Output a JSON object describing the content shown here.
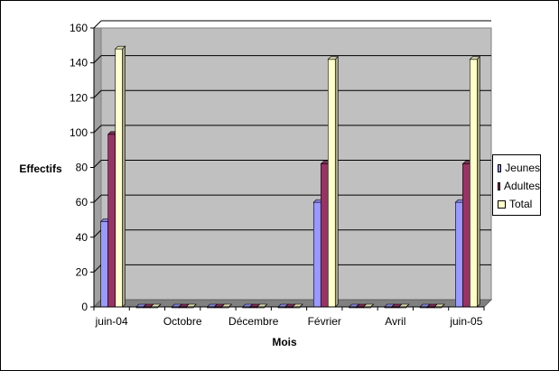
{
  "chart_data": {
    "type": "bar",
    "style": "3d-clustered-columns",
    "categories": [
      "juin-04",
      "",
      "Octobre",
      "",
      "Décembre",
      "",
      "Février",
      "",
      "Avril",
      "",
      "juin-05"
    ],
    "series": [
      {
        "name": "Jeunes",
        "color": "#9999FF",
        "values": [
          49,
          0,
          0,
          0,
          0,
          0,
          60,
          0,
          0,
          0,
          60
        ]
      },
      {
        "name": "Adultes",
        "color": "#993366",
        "values": [
          99,
          0,
          0,
          0,
          0,
          0,
          82,
          0,
          0,
          0,
          82
        ]
      },
      {
        "name": "Total",
        "color": "#FFFFCC",
        "values": [
          148,
          0,
          0,
          0,
          0,
          0,
          142,
          0,
          0,
          0,
          142
        ]
      }
    ],
    "title": "",
    "xlabel": "Mois",
    "ylabel": "Effectifs",
    "ylim": [
      0,
      160
    ],
    "yticks": [
      0,
      20,
      40,
      60,
      80,
      100,
      120,
      140,
      160
    ],
    "grid": true,
    "legend_position": "right",
    "plot_background": "#C0C0C0"
  }
}
